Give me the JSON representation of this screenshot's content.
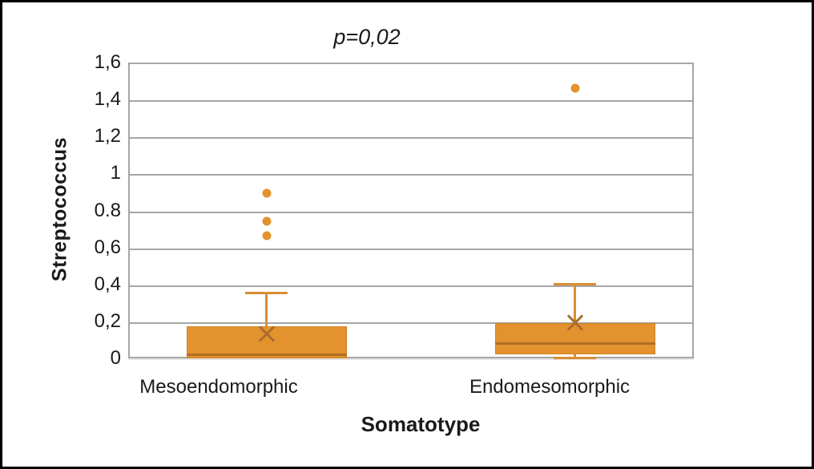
{
  "figure": {
    "title": "p=0,02",
    "x_axis_label": "Somatotype",
    "y_axis_label": "Streptococcus"
  },
  "chart_data": {
    "type": "boxplot",
    "title": "p=0,02",
    "xlabel": "Somatotype",
    "ylabel": "Streptococcus",
    "ylim": [
      0,
      1.6
    ],
    "yticks": [
      0,
      0.2,
      0.4,
      0.6,
      0.8,
      1,
      1.2,
      1.4,
      1.6
    ],
    "ytick_labels": [
      "0",
      "0,2",
      "0,4",
      "0,6",
      "0.8",
      "1",
      "1,2",
      "1,4",
      "1,6"
    ],
    "grid": "horizontal",
    "legend": "none",
    "categories": [
      "Mesoendomorphic",
      "Endomesomorphic"
    ],
    "series": [
      {
        "category": "Mesoendomorphic",
        "whisker_low": null,
        "q1": 0.01,
        "median": 0.03,
        "q3": 0.18,
        "whisker_high": 0.36,
        "mean": 0.14,
        "outliers": [
          0.67,
          0.75,
          0.9
        ]
      },
      {
        "category": "Endomesomorphic",
        "whisker_low": 0.01,
        "q1": 0.03,
        "median": 0.09,
        "q3": 0.2,
        "whisker_high": 0.41,
        "mean": 0.2,
        "outliers": [
          1.47
        ]
      }
    ],
    "colors": {
      "box_fill": "#E2932E",
      "box_edge": "#D08428",
      "whisker": "#D98E33",
      "median": "#B06E24",
      "mean_marker": "#A96E2C",
      "outlier": "#E2932E",
      "gridline": "#A6A6A6",
      "text": "#1A1A1A"
    }
  }
}
